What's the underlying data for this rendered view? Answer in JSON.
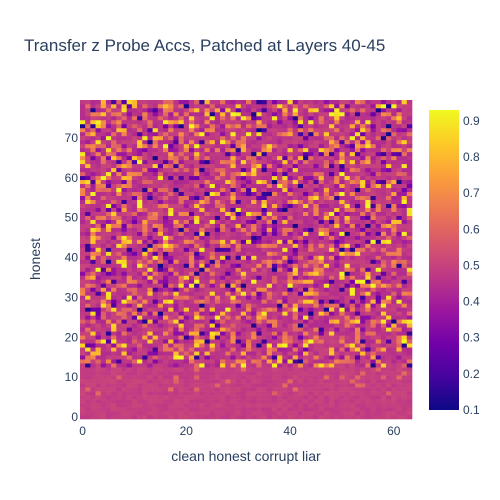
{
  "chart_data": {
    "type": "heatmap",
    "title": "Transfer z Probe Accs, Patched at Layers 40-45",
    "xlabel": "clean honest corrupt liar",
    "ylabel": "honest",
    "x_range": [
      0,
      63
    ],
    "y_range": [
      0,
      79
    ],
    "x_ticks": [
      0,
      20,
      40,
      60
    ],
    "y_ticks": [
      0,
      10,
      20,
      30,
      40,
      50,
      60,
      70
    ],
    "z_range": [
      0.1,
      0.93
    ],
    "colorbar_ticks": [
      0.1,
      0.2,
      0.3,
      0.4,
      0.5,
      0.6,
      0.7,
      0.8,
      0.9
    ],
    "colorscale": "plasma",
    "colors": {
      "plasma": [
        "#0d0887",
        "#46039f",
        "#7201a8",
        "#9c179e",
        "#bd3786",
        "#d8576b",
        "#ed7953",
        "#fb9f3a",
        "#fdca26",
        "#f0f921"
      ]
    },
    "description_of_pattern": "rows 0-12 uniformly ~0.5; rows 13-79 noisy values spread 0.1-0.93 around 0.5"
  }
}
